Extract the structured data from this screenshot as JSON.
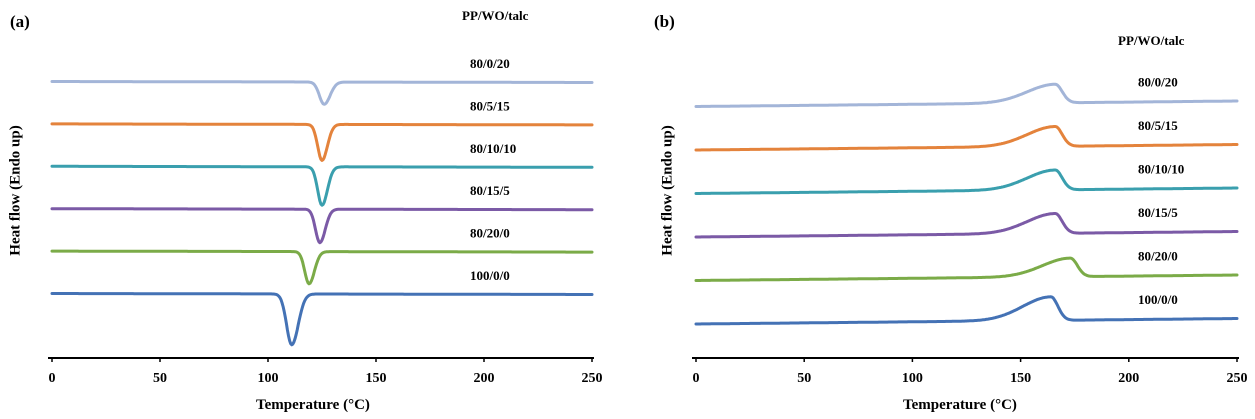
{
  "chart_data": [
    {
      "type": "line",
      "panel_label": "(a)",
      "legend_title": "PP/WO/talc",
      "xlabel": "Temperature (°C)",
      "ylabel": "Heat flow (Endo up)",
      "xlim": [
        0,
        250
      ],
      "x_ticks": [
        "0",
        "50",
        "100",
        "150",
        "200",
        "250"
      ],
      "grid": false,
      "series": [
        {
          "name": "80/0/20",
          "color": "#a3b5d8",
          "baseline": 5,
          "peak_x": 126,
          "depth": 0.36,
          "width": 2.2
        },
        {
          "name": "80/5/15",
          "color": "#e4833c",
          "baseline": 4,
          "peak_x": 125,
          "depth": 0.58,
          "width": 2.0
        },
        {
          "name": "80/10/10",
          "color": "#3a9fae",
          "baseline": 3,
          "peak_x": 125,
          "depth": 0.62,
          "width": 2.0
        },
        {
          "name": "80/15/5",
          "color": "#7b5aa6",
          "baseline": 2,
          "peak_x": 124,
          "depth": 0.54,
          "width": 2.0
        },
        {
          "name": "80/20/0",
          "color": "#7bab48",
          "baseline": 1,
          "peak_x": 119,
          "depth": 0.52,
          "width": 2.0
        },
        {
          "name": "100/0/0",
          "color": "#4472b5",
          "baseline": 0,
          "peak_x": 111,
          "depth": 0.82,
          "width": 2.4
        }
      ]
    },
    {
      "type": "line",
      "panel_label": "(b)",
      "legend_title": "PP/WO/talc",
      "xlabel": "Temperature (°C)",
      "ylabel": "Heat flow (Endo up)",
      "xlim": [
        0,
        250
      ],
      "x_ticks": [
        "0",
        "50",
        "100",
        "150",
        "200",
        "250"
      ],
      "grid": false,
      "series": [
        {
          "name": "80/0/20",
          "color": "#a3b5d8",
          "baseline": 5,
          "peak_x": 166,
          "height": 0.3
        },
        {
          "name": "80/5/15",
          "color": "#e4833c",
          "baseline": 4,
          "peak_x": 166,
          "height": 0.32
        },
        {
          "name": "80/10/10",
          "color": "#3a9fae",
          "baseline": 3,
          "peak_x": 166,
          "height": 0.32
        },
        {
          "name": "80/15/5",
          "color": "#7b5aa6",
          "baseline": 2,
          "peak_x": 166,
          "height": 0.32
        },
        {
          "name": "80/20/0",
          "color": "#7bab48",
          "baseline": 1,
          "peak_x": 173,
          "height": 0.3
        },
        {
          "name": "100/0/0",
          "color": "#4472b5",
          "baseline": 0,
          "peak_x": 164,
          "height": 0.38
        }
      ]
    }
  ]
}
